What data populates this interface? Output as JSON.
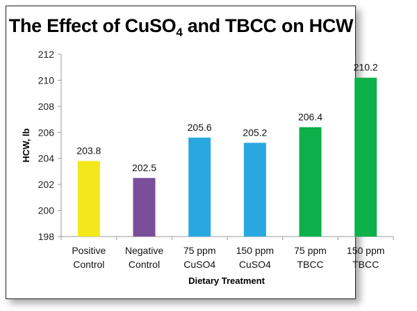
{
  "chart_data": {
    "type": "bar",
    "title_parts": {
      "pre": "The Effect of CuSO",
      "sub": "4",
      "post": " and TBCC on HCW"
    },
    "title": "The Effect of CuSO4 and TBCC on HCW",
    "xlabel": "Dietary Treatment",
    "ylabel": "HCW, lb",
    "ylim": [
      198,
      212
    ],
    "yticks": [
      198,
      200,
      202,
      204,
      206,
      208,
      210,
      212
    ],
    "grid": false,
    "legend": "none",
    "categories": [
      [
        "Positive",
        "Control"
      ],
      [
        "Negative",
        "Control"
      ],
      [
        "75 ppm",
        "CuSO4"
      ],
      [
        "150 ppm",
        "CuSO4"
      ],
      [
        "75 ppm",
        "TBCC"
      ],
      [
        "150 ppm",
        "TBCC"
      ]
    ],
    "values": [
      203.8,
      202.5,
      205.6,
      205.2,
      206.4,
      210.2
    ],
    "data_labels": [
      "203.8",
      "202.5",
      "205.6",
      "205.2",
      "206.4",
      "210.2"
    ],
    "colors": [
      "#f2e81c",
      "#7a4f9a",
      "#29a8e0",
      "#29a8e0",
      "#0db04b",
      "#0db04b"
    ]
  }
}
